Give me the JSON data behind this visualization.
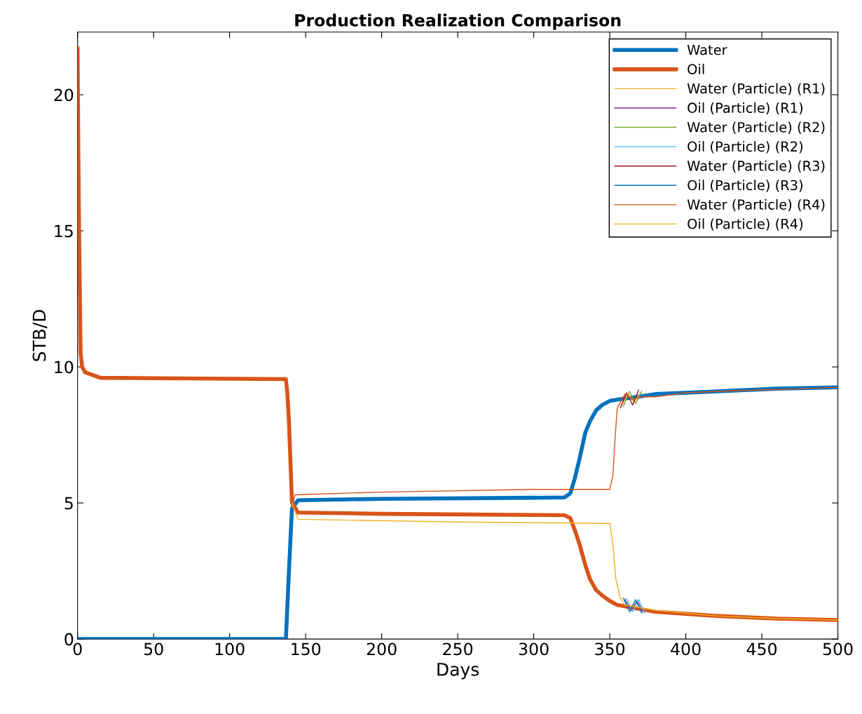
{
  "chart_data": {
    "type": "line",
    "title": "Production Realization Comparison",
    "xlabel": "Days",
    "ylabel": "STB/D",
    "xlim": [
      0,
      500
    ],
    "ylim": [
      0,
      22.3
    ],
    "xticks": [
      0,
      50,
      100,
      150,
      200,
      250,
      300,
      350,
      400,
      450,
      500
    ],
    "yticks": [
      0,
      5,
      10,
      15,
      20
    ],
    "grid": false,
    "legend": "top right",
    "line_style": "solid",
    "marker": "none",
    "series": [
      {
        "name": "Water",
        "color": "#0072bd",
        "x": [
          0,
          137,
          139,
          141,
          145,
          200,
          320,
          324,
          327,
          330,
          334,
          337,
          341,
          345,
          350,
          355,
          380,
          420,
          460,
          500
        ],
        "values": [
          0,
          0,
          2.5,
          4.8,
          5.1,
          5.15,
          5.2,
          5.35,
          5.9,
          6.6,
          7.6,
          8.0,
          8.4,
          8.6,
          8.75,
          8.8,
          9.0,
          9.1,
          9.2,
          9.25
        ]
      },
      {
        "name": "Oil",
        "color": "#d95319",
        "x": [
          0,
          0.5,
          1,
          2,
          3,
          5,
          15,
          137,
          138,
          139,
          140,
          141,
          145,
          200,
          320,
          324,
          327,
          330,
          334,
          337,
          341,
          345,
          350,
          355,
          380,
          420,
          460,
          500
        ],
        "values": [
          21.7,
          18,
          15,
          10.5,
          10,
          9.8,
          9.6,
          9.55,
          9,
          8,
          6.5,
          5,
          4.65,
          4.6,
          4.55,
          4.45,
          4.0,
          3.5,
          2.7,
          2.2,
          1.8,
          1.6,
          1.4,
          1.25,
          1.0,
          0.85,
          0.75,
          0.7
        ]
      },
      {
        "name": "Water (Particle) (R1)",
        "color": "#edb120",
        "x": [
          358,
          362,
          366,
          370
        ],
        "values": [
          8.6,
          9.0,
          8.7,
          9.05
        ]
      },
      {
        "name": "Oil (Particle) (R1)",
        "color": "#7e2f8e",
        "x": [
          360,
          364,
          368,
          372
        ],
        "values": [
          1.45,
          1.05,
          1.4,
          1.0
        ]
      },
      {
        "name": "Water (Particle) (R2)",
        "color": "#77ac30",
        "x": [
          359,
          363,
          367,
          371
        ],
        "values": [
          8.55,
          9.1,
          8.65,
          9.1
        ]
      },
      {
        "name": "Oil (Particle) (R2)",
        "color": "#4dbeee",
        "x": [
          361,
          365,
          369,
          373
        ],
        "values": [
          1.5,
          1.0,
          1.45,
          0.95
        ]
      },
      {
        "name": "Water (Particle) (R3)",
        "color": "#a2142f",
        "x": [
          357,
          361,
          365,
          369
        ],
        "values": [
          8.5,
          9.05,
          8.6,
          9.15
        ]
      },
      {
        "name": "Oil (Particle) (R3)",
        "color": "#0072bd",
        "x": [
          359,
          363,
          367,
          371
        ],
        "values": [
          1.5,
          1.0,
          1.45,
          0.95
        ]
      },
      {
        "name": "Water (Particle) (R4)",
        "color": "#d95319",
        "x": [
          141,
          143,
          200,
          300,
          350,
          352,
          354,
          355,
          358,
          360,
          365,
          370,
          380,
          400,
          420,
          450,
          480,
          500
        ],
        "values": [
          4.8,
          5.3,
          5.4,
          5.5,
          5.5,
          6.0,
          7.8,
          8.5,
          8.8,
          9.0,
          8.8,
          8.9,
          8.9,
          9.05,
          9.1,
          9.15,
          9.2,
          9.25
        ]
      },
      {
        "name": "Oil (Particle) (R4)",
        "color": "#edb120",
        "x": [
          141,
          145,
          250,
          350,
          352,
          354,
          357,
          360,
          365,
          370,
          380,
          420,
          460,
          500
        ],
        "values": [
          5,
          4.4,
          4.3,
          4.25,
          3.5,
          2.2,
          1.5,
          1.25,
          1.2,
          1.15,
          1.05,
          0.85,
          0.75,
          0.7
        ]
      }
    ]
  }
}
